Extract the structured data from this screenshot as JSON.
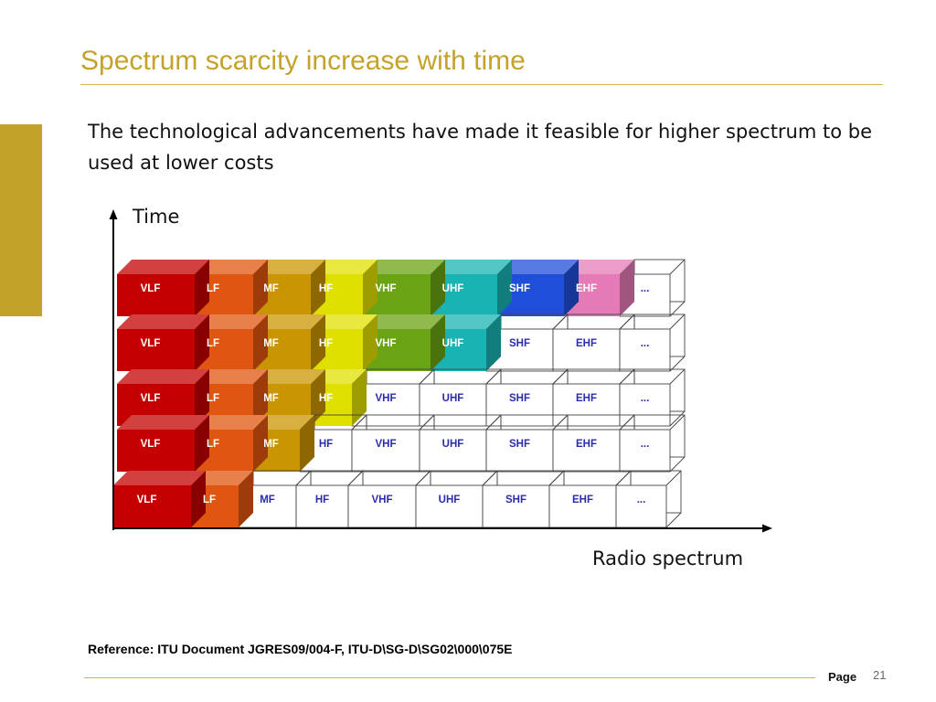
{
  "slide": {
    "title": "Spectrum scarcity increase with time",
    "body": "The technological advancements have made it feasible for higher spectrum to be used at lower costs",
    "reference": "Reference: ITU Document JGRES09/004-F, ITU-D\\SG-D\\SG02\\000\\075E",
    "page_label": "Page",
    "page_number": "21"
  },
  "diagram": {
    "y_axis_label": "Time",
    "x_axis_label": "Radio spectrum",
    "bands": [
      "VLF",
      "LF",
      "MF",
      "HF",
      "VHF",
      "UHF",
      "SHF",
      "EHF",
      "..."
    ],
    "band_colors": [
      "#c40000",
      "#e05510",
      "#c99500",
      "#e0e000",
      "#6aa313",
      "#19b3b3",
      "#1f4fd8",
      "#e47bb6",
      "#ffffff"
    ],
    "rows": [
      {
        "filled_bands": 8
      },
      {
        "filled_bands": 6
      },
      {
        "filled_bands": 4
      },
      {
        "filled_bands": 3
      },
      {
        "filled_bands": 2
      }
    ]
  }
}
